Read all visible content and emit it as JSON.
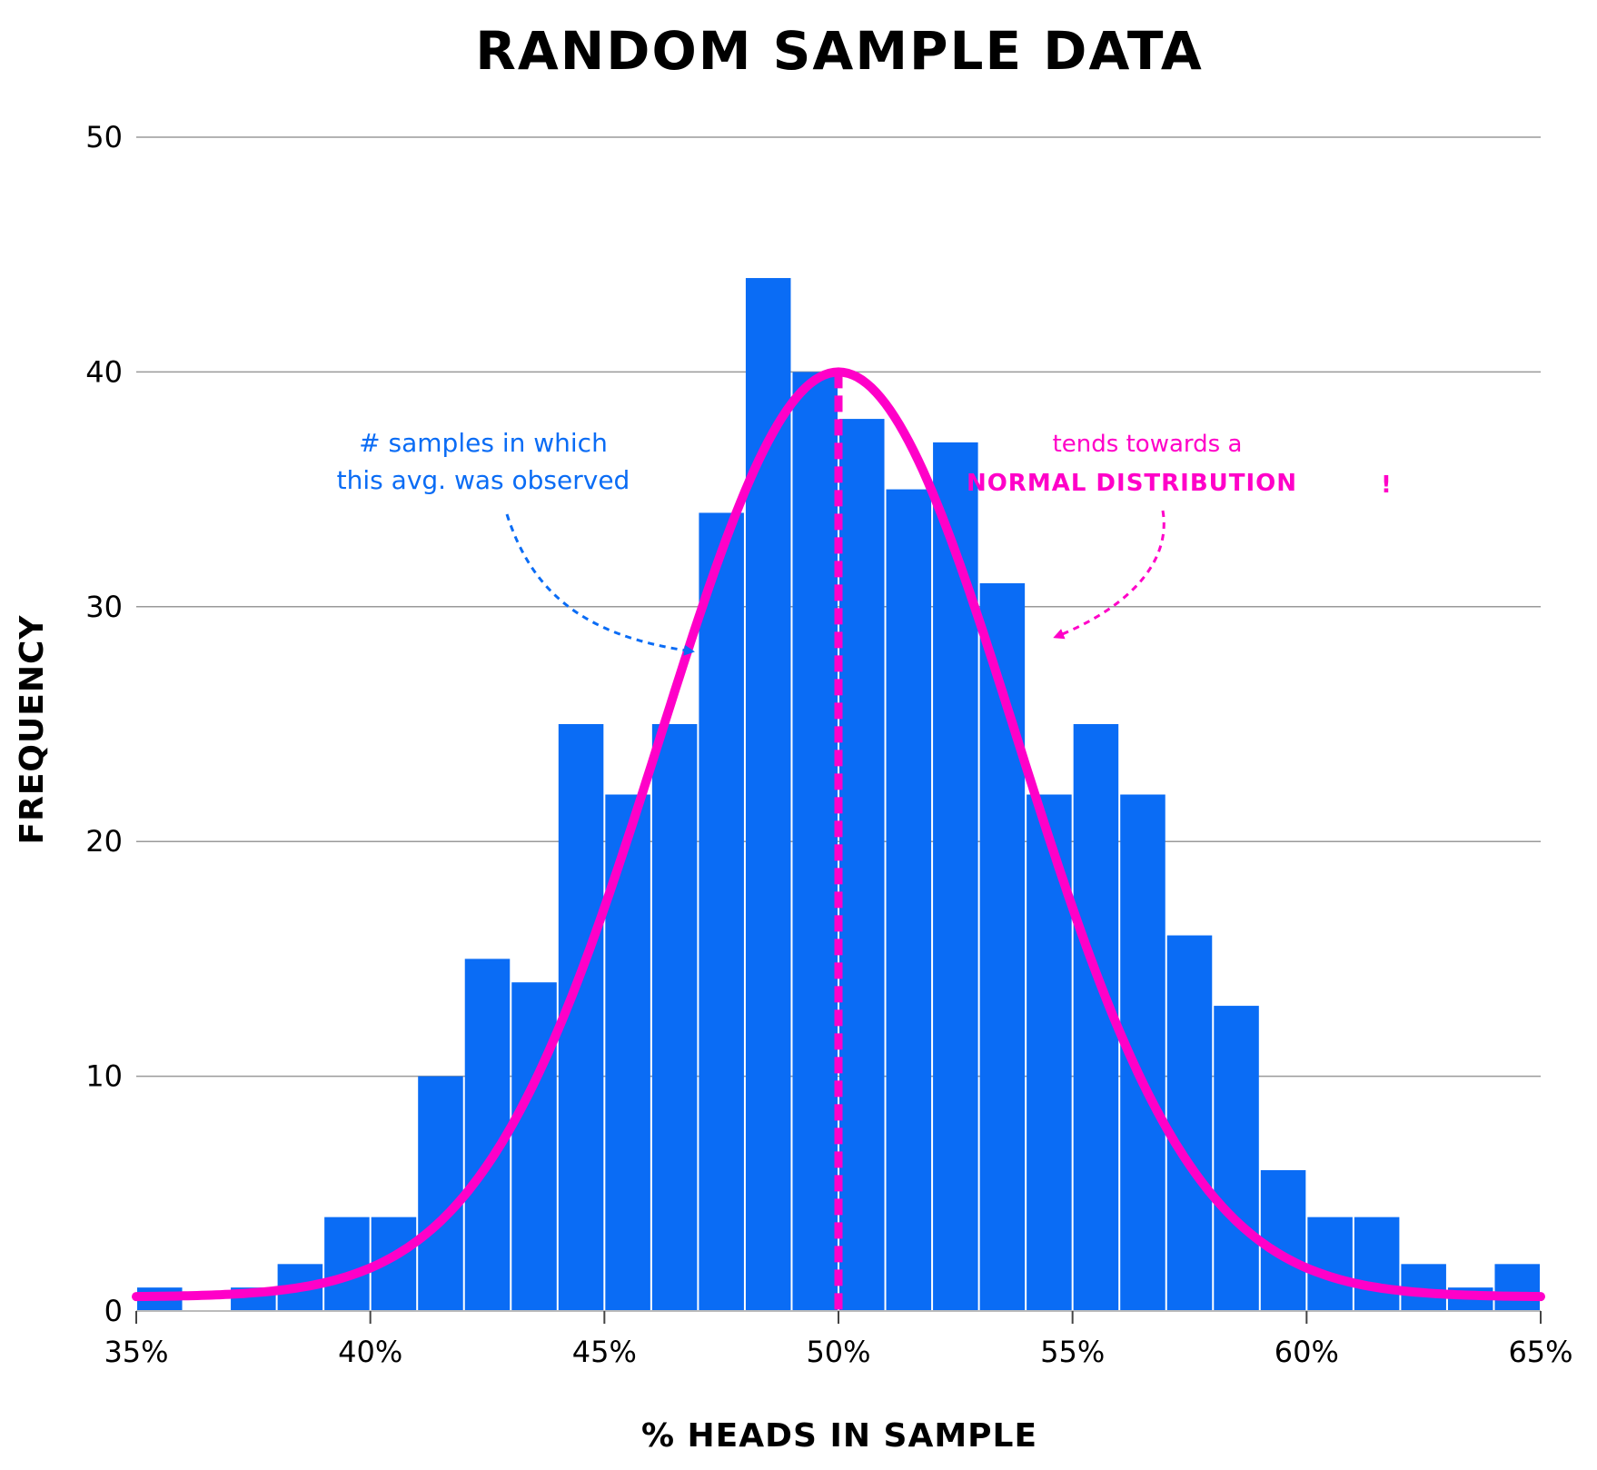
{
  "chart_data": {
    "type": "bar",
    "title": "RANDOM SAMPLE DATA",
    "xlabel": "% HEADS IN SAMPLE",
    "ylabel": "FREQUENCY",
    "xlim": [
      35,
      65
    ],
    "ylim": [
      0,
      50
    ],
    "x_ticks": [
      {
        "value": 35,
        "label": "35%"
      },
      {
        "value": 40,
        "label": "40%"
      },
      {
        "value": 45,
        "label": "45%"
      },
      {
        "value": 50,
        "label": "50%"
      },
      {
        "value": 55,
        "label": "55%"
      },
      {
        "value": 60,
        "label": "60%"
      },
      {
        "value": 65,
        "label": "65%"
      }
    ],
    "y_ticks": [
      {
        "value": 0,
        "label": "0"
      },
      {
        "value": 10,
        "label": "10"
      },
      {
        "value": 20,
        "label": "20"
      },
      {
        "value": 30,
        "label": "30"
      },
      {
        "value": 40,
        "label": "40"
      },
      {
        "value": 50,
        "label": "50"
      }
    ],
    "grid": true,
    "bins": {
      "start": 35,
      "width": 1,
      "values": [
        1,
        0,
        1,
        2,
        4,
        4,
        10,
        15,
        14,
        25,
        22,
        25,
        34,
        44,
        40,
        38,
        35,
        37,
        31,
        22,
        25,
        22,
        16,
        13,
        6,
        4,
        4,
        2,
        1,
        2
      ]
    },
    "normal_curve": {
      "mean": 50,
      "peak": 40,
      "sigma": 3.8,
      "floor": 0.6
    },
    "mean_line": {
      "x": 50
    },
    "colors": {
      "bars": "#0a6cf5",
      "curve": "#ff00c8",
      "grid": "#9a9a9a"
    },
    "annotations": {
      "blue": {
        "line1": "# samples in which",
        "line2": "this avg. was observed"
      },
      "pink": {
        "line1": "tends towards a",
        "line2": "NORMAL DISTRIBUTION",
        "mark": "!"
      }
    }
  }
}
